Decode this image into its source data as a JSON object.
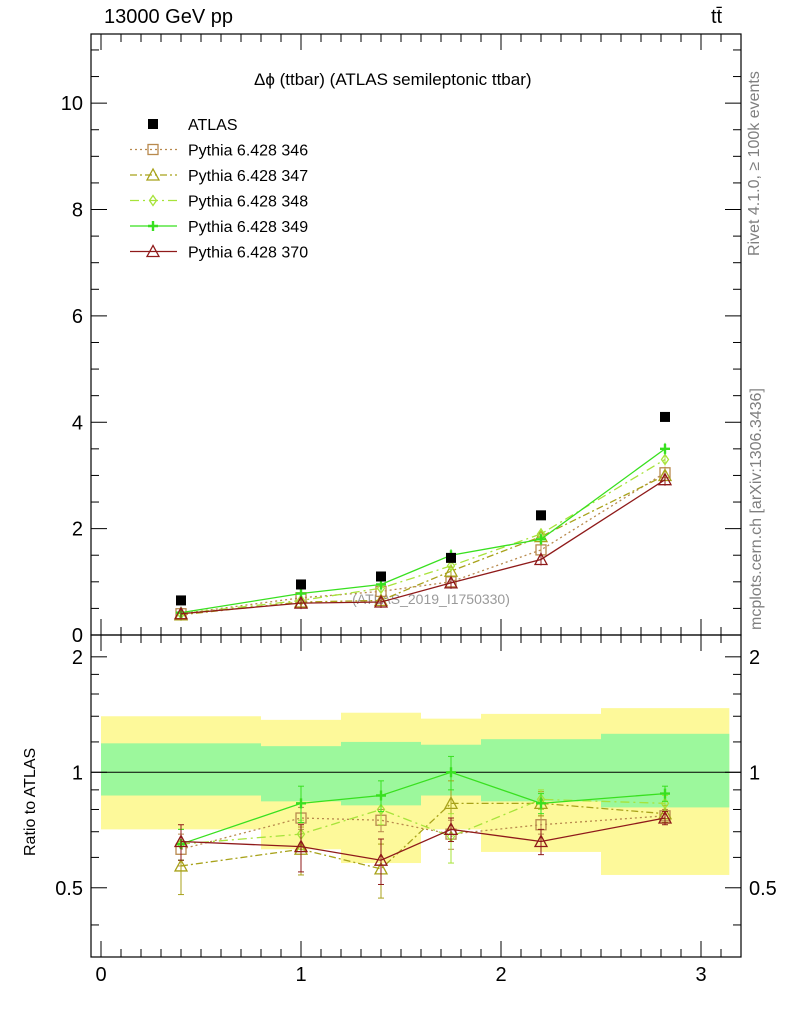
{
  "header": {
    "energy": "13000 GeV pp",
    "process": "tt̄"
  },
  "side_labels": {
    "rivet": "Rivet 4.1.0, ≥ 100k events",
    "source": "mcplots.cern.ch [arXiv:1306.3436]"
  },
  "watermark": "(ATLAS_2019_I1750330)",
  "chart_data": {
    "type": "line",
    "title": "Δϕ (ttbar) (ATLAS semileptonic ttbar)",
    "xlabel": "",
    "ylabel": "",
    "ratio_ylabel": "Ratio to ATLAS",
    "xlim": [
      -0.05,
      3.2
    ],
    "ylim": [
      0,
      11.3
    ],
    "ratio_ylim": [
      0.33,
      2.28
    ],
    "x_ticks": [
      "0",
      "1",
      "2",
      "3"
    ],
    "y_ticks": [
      "0",
      "2",
      "4",
      "6",
      "8",
      "10"
    ],
    "ratio_ticks": [
      "0.5",
      "1",
      "2"
    ],
    "bin_edges": [
      0,
      0.8,
      1.2,
      1.6,
      1.9,
      2.5,
      3.1416
    ],
    "x": [
      0.4,
      1.0,
      1.4,
      1.75,
      2.2,
      2.82
    ],
    "data": {
      "name": "ATLAS",
      "values": [
        0.65,
        0.95,
        1.1,
        1.45,
        2.25,
        4.1
      ]
    },
    "band_green": {
      "up": [
        1.19,
        1.17,
        1.2,
        1.18,
        1.22,
        1.26
      ],
      "down": [
        0.87,
        0.84,
        0.82,
        0.87,
        0.84,
        0.81
      ]
    },
    "band_yellow": {
      "up": [
        1.4,
        1.37,
        1.43,
        1.38,
        1.42,
        1.47
      ],
      "down": [
        0.71,
        0.63,
        0.58,
        0.71,
        0.62,
        0.54
      ]
    },
    "series": [
      {
        "name": "Pythia 6.428 346",
        "color": "#b8894d",
        "marker": "square",
        "dash": "2,3",
        "values": [
          0.4,
          0.7,
          0.82,
          1.0,
          1.6,
          3.05
        ],
        "ratio": [
          0.63,
          0.76,
          0.75,
          0.69,
          0.73,
          0.77
        ],
        "err": [
          0.06,
          0.05,
          0.05,
          0.06,
          0.04,
          0.03
        ]
      },
      {
        "name": "Pythia 6.428 347",
        "color": "#a8a21a",
        "marker": "triangle",
        "dash": "7,3,2,3",
        "values": [
          0.38,
          0.62,
          0.65,
          1.2,
          1.85,
          3.0
        ],
        "ratio": [
          0.57,
          0.63,
          0.56,
          0.83,
          0.83,
          0.78
        ],
        "err": [
          0.09,
          0.09,
          0.09,
          0.12,
          0.06,
          0.04
        ]
      },
      {
        "name": "Pythia 6.428 348",
        "color": "#a7e33a",
        "marker": "diamond",
        "dash": "9,4,2,4",
        "values": [
          0.4,
          0.65,
          0.88,
          1.3,
          1.9,
          3.3
        ],
        "ratio": [
          0.65,
          0.69,
          0.8,
          0.68,
          0.85,
          0.83
        ],
        "err": [
          0.06,
          0.06,
          0.07,
          0.1,
          0.05,
          0.04
        ]
      },
      {
        "name": "Pythia 6.428 349",
        "color": "#38e01f",
        "marker": "cross",
        "dash": "",
        "values": [
          0.42,
          0.78,
          0.95,
          1.5,
          1.8,
          3.5
        ],
        "ratio": [
          0.65,
          0.83,
          0.87,
          1.0,
          0.83,
          0.88
        ],
        "err": [
          0.06,
          0.09,
          0.08,
          0.1,
          0.05,
          0.04
        ]
      },
      {
        "name": "Pythia 6.428 370",
        "color": "#8f1a1a",
        "marker": "triangle",
        "dash": "",
        "values": [
          0.4,
          0.6,
          0.62,
          0.98,
          1.42,
          2.92
        ],
        "ratio": [
          0.66,
          0.64,
          0.59,
          0.71,
          0.66,
          0.76
        ],
        "err": [
          0.07,
          0.09,
          0.08,
          0.05,
          0.05,
          0.03
        ]
      }
    ]
  }
}
